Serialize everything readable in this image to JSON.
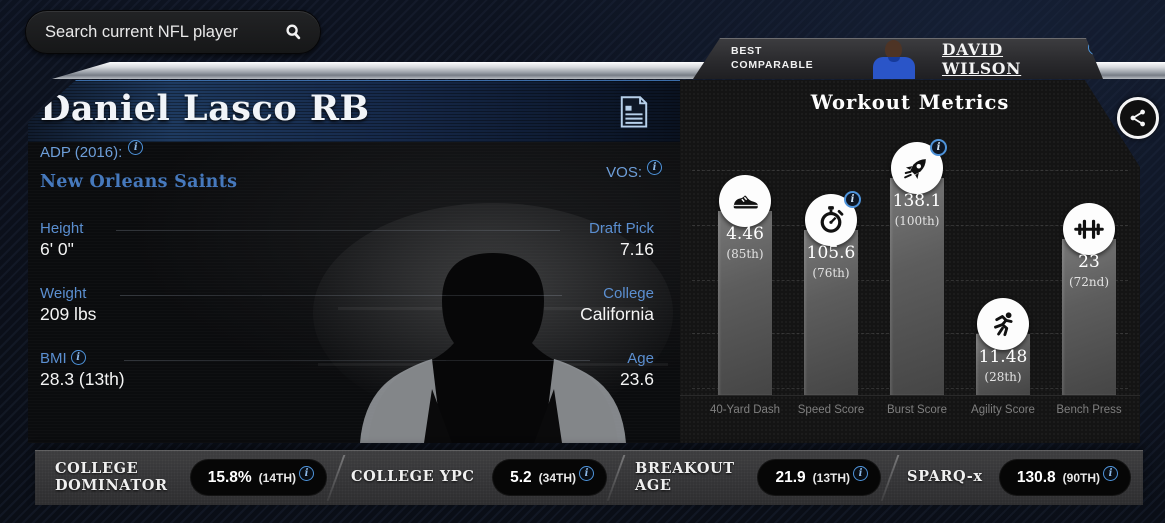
{
  "search": {
    "placeholder": "Search current NFL player"
  },
  "best_comparable": {
    "label": "BEST\nCOMPARABLE",
    "player_link": "DAVID WILSON"
  },
  "player": {
    "name": "Daniel Lasco RB",
    "adp_label": "ADP (2016):",
    "vos_label": "VOS:",
    "team": "New Orleans Saints",
    "stats_left": [
      {
        "label": "Height",
        "value": "6' 0\""
      },
      {
        "label": "Weight",
        "value": "209 lbs"
      },
      {
        "label": "BMI",
        "value": "28.3 (13th)"
      }
    ],
    "stats_right": [
      {
        "label": "Draft Pick",
        "value": "7.16"
      },
      {
        "label": "College",
        "value": "California"
      },
      {
        "label": "Age",
        "value": "23.6"
      }
    ]
  },
  "chart_data": {
    "type": "bar",
    "title": "Workout Metrics",
    "categories": [
      "40-Yard Dash",
      "Speed Score",
      "Burst Score",
      "Agility Score",
      "Bench Press"
    ],
    "values": [
      4.46,
      105.6,
      138.1,
      11.48,
      23
    ],
    "display_values": [
      "4.46",
      "105.6",
      "138.1",
      "11.48",
      "23"
    ],
    "percentile_labels": [
      "(85th)",
      "(76th)",
      "(100th)",
      "(28th)",
      "(72nd)"
    ],
    "percentile_values": [
      85,
      76,
      100,
      28,
      72
    ],
    "icons": [
      "shoe-icon",
      "stopwatch-icon",
      "rocket-icon",
      "runner-icon",
      "barbell-icon"
    ],
    "info_badges_on": [
      "Speed Score",
      "Burst Score"
    ],
    "ylabel": "",
    "grid": "dashed-horizontal",
    "bar_color": "#5d5d5d",
    "note": "bar heights proportional to percentile values"
  },
  "bottom_metrics": [
    {
      "label": "COLLEGE DOMINATOR",
      "value": "15.8%",
      "rank": "(14TH)"
    },
    {
      "label": "COLLEGE YPC",
      "value": "5.2",
      "rank": "(34TH)"
    },
    {
      "label": "BREAKOUT AGE",
      "value": "21.9",
      "rank": "(13TH)"
    },
    {
      "label": "SPARQ-x",
      "value": "130.8",
      "rank": "(90TH)"
    }
  ],
  "colors": {
    "accent_blue": "#4e93da",
    "label_blue": "#5b8fd1",
    "team_blue": "#4679bd",
    "bar_gray": "#5d5d5d",
    "panel_dark": "#141414"
  }
}
